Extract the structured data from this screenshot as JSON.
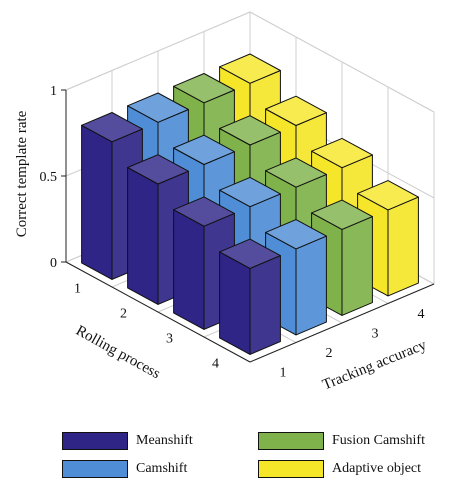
{
  "chart_data": {
    "type": "bar3d",
    "zlabel": "Correct template rate",
    "xlabel": "Rolling process",
    "ylabel": "Tracking accuracy",
    "x_ticks": [
      "1",
      "2",
      "3",
      "4"
    ],
    "y_ticks": [
      "1",
      "2",
      "3",
      "4"
    ],
    "z_ticks": [
      "0",
      "0.5",
      "1"
    ],
    "zlim": [
      0,
      1
    ],
    "grid": true,
    "legend_position": "bottom",
    "series": [
      {
        "name": "Meanshift",
        "color": "#2e2586",
        "values": [
          0.8,
          0.7,
          0.6,
          0.5
        ]
      },
      {
        "name": "Camshift",
        "color": "#4f8ed6",
        "values": [
          0.8,
          0.7,
          0.6,
          0.5
        ]
      },
      {
        "name": "Fusion Camshift",
        "color": "#7fb24a",
        "values": [
          0.8,
          0.7,
          0.6,
          0.5
        ]
      },
      {
        "name": "Adaptive object",
        "color": "#f5e62a",
        "values": [
          0.8,
          0.7,
          0.6,
          0.5
        ]
      }
    ]
  }
}
